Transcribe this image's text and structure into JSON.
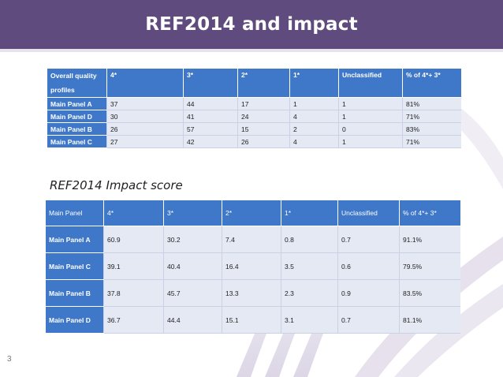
{
  "slide": {
    "title": "REF2014 and impact",
    "page_number": "3"
  },
  "quality_table": {
    "headers": [
      "Overall quality profiles",
      "4*",
      "3*",
      "2*",
      "1*",
      "Unclassified",
      "% of 4*+ 3*"
    ],
    "rows": [
      [
        "Main Panel A",
        "37",
        "44",
        "17",
        "1",
        "1",
        "81%"
      ],
      [
        "Main Panel D",
        "30",
        "41",
        "24",
        "4",
        "1",
        "71%"
      ],
      [
        "Main Panel B",
        "26",
        "57",
        "15",
        "2",
        "0",
        "83%"
      ],
      [
        "Main Panel C",
        "27",
        "42",
        "26",
        "4",
        "1",
        "71%"
      ]
    ]
  },
  "impact_section": {
    "title": "REF2014 Impact score"
  },
  "impact_table": {
    "headers": [
      "Main Panel",
      "4*",
      "3*",
      "2*",
      "1*",
      "Unclassified",
      "% of 4*+ 3*"
    ],
    "rows": [
      [
        "Main Panel A",
        "60.9",
        "30.2",
        "7.4",
        "0.8",
        "0.7",
        "91.1%"
      ],
      [
        "Main Panel C",
        "39.1",
        "40.4",
        "16.4",
        "3.5",
        "0.6",
        "79.5%"
      ],
      [
        "Main Panel B",
        "37.8",
        "45.7",
        "13.3",
        "2.3",
        "0.9",
        "83.5%"
      ],
      [
        "Main Panel D",
        "36.7",
        "44.4",
        "15.1",
        "3.1",
        "0.7",
        "81.1%"
      ]
    ]
  },
  "colors": {
    "title_bar": "#5f4b7e",
    "header_cell": "#3f78c8",
    "body_cell": "#e4e9f3"
  }
}
